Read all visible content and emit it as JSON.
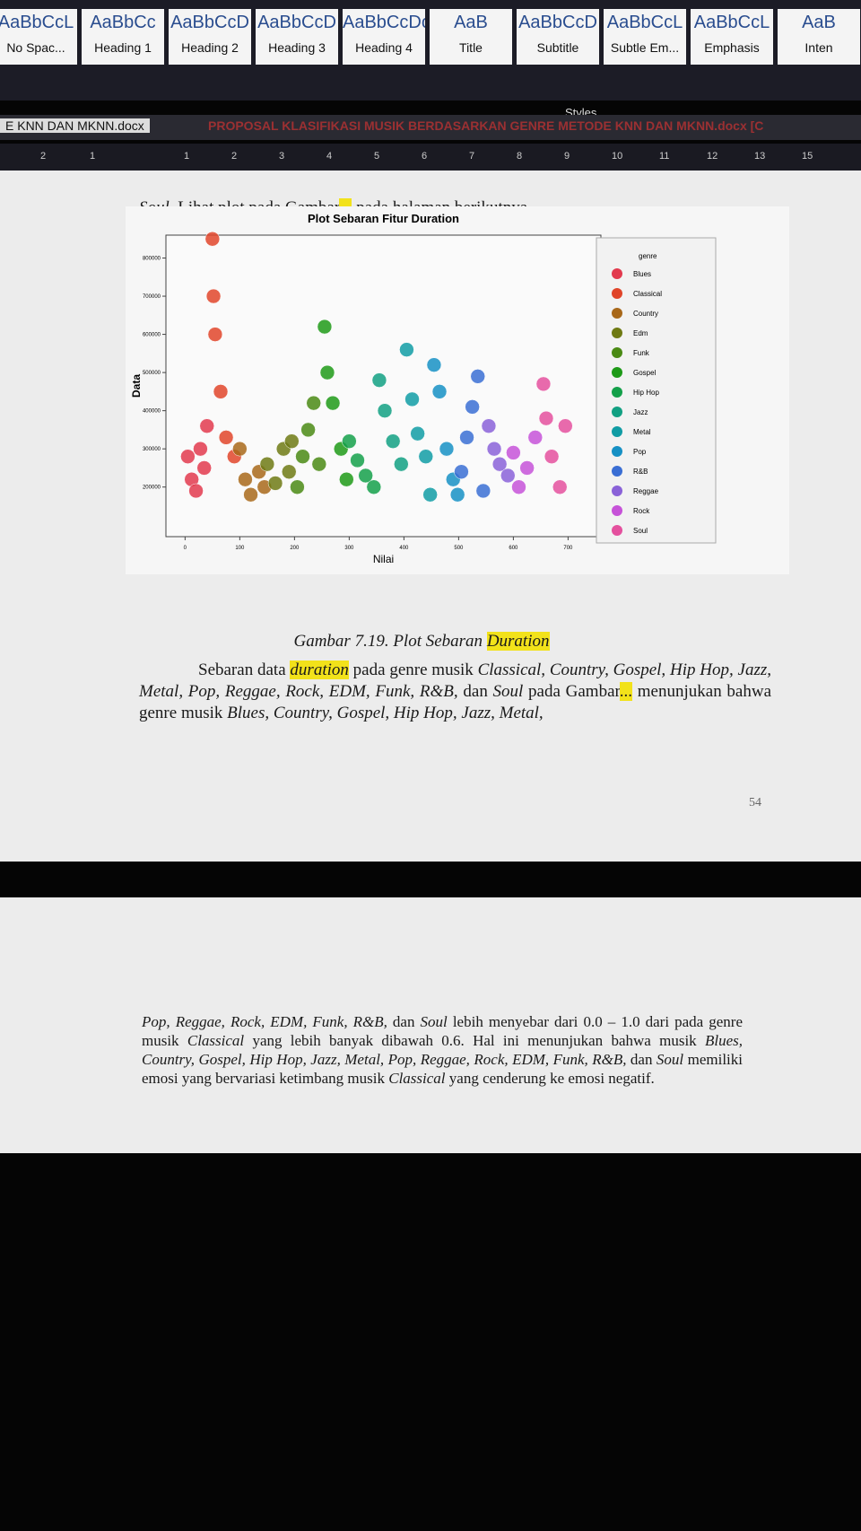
{
  "ribbon": {
    "styles": [
      {
        "preview": "AaBbCcL",
        "name": "No Spac..."
      },
      {
        "preview": "AaBbCc",
        "name": "Heading 1"
      },
      {
        "preview": "AaBbCcD",
        "name": "Heading 2"
      },
      {
        "preview": "AaBbCcD",
        "name": "Heading 3"
      },
      {
        "preview": "AaBbCcDc",
        "name": "Heading 4"
      },
      {
        "preview": "AaB",
        "name": "Title"
      },
      {
        "preview": "AaBbCcD",
        "name": "Subtitle"
      },
      {
        "preview": "AaBbCcL",
        "name": "Subtle Em..."
      },
      {
        "preview": "AaBbCcL",
        "name": "Emphasis"
      },
      {
        "preview": "AaB",
        "name": "Inten"
      }
    ],
    "group_label": "Styles"
  },
  "tabs": [
    "E KNN DAN MKNN.docx",
    "PROPOSAL KLASIFIKASI MUSIK BERDASARKAN GENRE METODE KNN DAN MKNN.docx [C"
  ],
  "ruler": [
    "2",
    "1",
    "1",
    "2",
    "3",
    "4",
    "5",
    "6",
    "7",
    "8",
    "9",
    "10",
    "11",
    "12",
    "13",
    "15"
  ],
  "page1": {
    "line1": [
      {
        "text": "Soul",
        "italic": true
      },
      {
        "text": ". Lihat plot pada Gambar"
      },
      {
        "text": "...",
        "highlight": true
      },
      {
        "text": " pada halaman berikutnya."
      }
    ],
    "caption": [
      {
        "text": "Gambar 7.19. Plot Sebaran ",
        "italic": true
      },
      {
        "text": "Duration",
        "italic": true,
        "highlight": true
      }
    ],
    "paragraph": [
      {
        "text": "Sebaran data "
      },
      {
        "text": "duration",
        "italic": true,
        "highlight": true
      },
      {
        "text": " pada genre musik "
      },
      {
        "text": "Classical, Country, Gospel, Hip Hop, Jazz, Metal, Pop, Reggae, Rock, EDM, Funk, R&B,",
        "italic": true
      },
      {
        "text": " dan "
      },
      {
        "text": "Soul",
        "italic": true
      },
      {
        "text": " pada Gambar"
      },
      {
        "text": "...",
        "highlight": true
      },
      {
        "text": " menunjukan bahwa genre musik "
      },
      {
        "text": "Blues, Country, Gospel, Hip Hop, Jazz, Metal,",
        "italic": true
      }
    ],
    "page_number": "54"
  },
  "page2": {
    "paragraph": [
      {
        "text": "Pop, Reggae, Rock, EDM, Funk, R&B,",
        "italic": true
      },
      {
        "text": " dan "
      },
      {
        "text": "Soul",
        "italic": true
      },
      {
        "text": " lebih menyebar dari 0.0 – 1.0 dari pada genre musik "
      },
      {
        "text": "Classical",
        "italic": true
      },
      {
        "text": " yang lebih banyak dibawah 0.6. Hal ini menunjukan bahwa musik "
      },
      {
        "text": "Blues, Country, Gospel, Hip Hop, Jazz, Metal, Pop, Reggae, Rock, EDM, Funk, R&B,",
        "italic": true
      },
      {
        "text": " dan "
      },
      {
        "text": "Soul",
        "italic": true
      },
      {
        "text": " memiliki emosi yang bervariasi ketimbang musik "
      },
      {
        "text": "Classical",
        "italic": true
      },
      {
        "text": " yang cenderung ke emosi negatif."
      }
    ]
  },
  "chart_data": {
    "type": "scatter",
    "title": "Plot Sebaran Fitur Duration",
    "x_label": "Nilai",
    "y_label": "Data",
    "legend_title": "genre",
    "xlim": [
      -35,
      760
    ],
    "ylim": [
      70000,
      860000
    ],
    "xticks": [
      0,
      100,
      200,
      300,
      400,
      500,
      600,
      700
    ],
    "yticks": [
      200000,
      300000,
      400000,
      500000,
      600000,
      700000,
      800000
    ],
    "series": [
      {
        "name": "Blues",
        "color": "#e23a4e",
        "x": [
          5,
          12,
          20,
          28,
          35,
          40
        ],
        "values": [
          280000,
          220000,
          190000,
          300000,
          250000,
          360000
        ]
      },
      {
        "name": "Classical",
        "color": "#e0452a",
        "x": [
          50,
          52,
          55,
          65,
          75,
          90
        ],
        "values": [
          850000,
          700000,
          600000,
          450000,
          330000,
          280000
        ]
      },
      {
        "name": "Country",
        "color": "#a8681a",
        "x": [
          100,
          110,
          120,
          135,
          145
        ],
        "values": [
          300000,
          220000,
          180000,
          240000,
          200000
        ]
      },
      {
        "name": "Edm",
        "color": "#6f7a14",
        "x": [
          150,
          165,
          180,
          190,
          195
        ],
        "values": [
          260000,
          210000,
          300000,
          240000,
          320000
        ]
      },
      {
        "name": "Funk",
        "color": "#4a8a14",
        "x": [
          205,
          215,
          225,
          235,
          245
        ],
        "values": [
          200000,
          280000,
          350000,
          420000,
          260000
        ]
      },
      {
        "name": "Gospel",
        "color": "#1e9a18",
        "x": [
          255,
          260,
          270,
          285,
          295
        ],
        "values": [
          620000,
          500000,
          420000,
          300000,
          220000
        ]
      },
      {
        "name": "Hip Hop",
        "color": "#14a04a",
        "x": [
          300,
          315,
          330,
          345
        ],
        "values": [
          320000,
          270000,
          230000,
          200000
        ]
      },
      {
        "name": "Jazz",
        "color": "#12a082",
        "x": [
          355,
          365,
          380,
          395
        ],
        "values": [
          480000,
          400000,
          320000,
          260000
        ]
      },
      {
        "name": "Metal",
        "color": "#109ca4",
        "x": [
          405,
          415,
          425,
          440,
          448
        ],
        "values": [
          560000,
          430000,
          340000,
          280000,
          180000
        ]
      },
      {
        "name": "Pop",
        "color": "#1690c4",
        "x": [
          455,
          465,
          478,
          490,
          498
        ],
        "values": [
          520000,
          450000,
          300000,
          220000,
          180000
        ]
      },
      {
        "name": "R&B",
        "color": "#3a6ed4",
        "x": [
          505,
          515,
          525,
          535,
          545
        ],
        "values": [
          240000,
          330000,
          410000,
          490000,
          190000
        ]
      },
      {
        "name": "Reggae",
        "color": "#8a62d8",
        "x": [
          555,
          565,
          575,
          590
        ],
        "values": [
          360000,
          300000,
          260000,
          230000
        ]
      },
      {
        "name": "Rock",
        "color": "#c652d8",
        "x": [
          600,
          610,
          625,
          640
        ],
        "values": [
          290000,
          200000,
          250000,
          330000
        ]
      },
      {
        "name": "Soul",
        "color": "#e4509e",
        "x": [
          655,
          660,
          670,
          685,
          695
        ],
        "values": [
          470000,
          380000,
          280000,
          200000,
          360000
        ]
      }
    ]
  }
}
